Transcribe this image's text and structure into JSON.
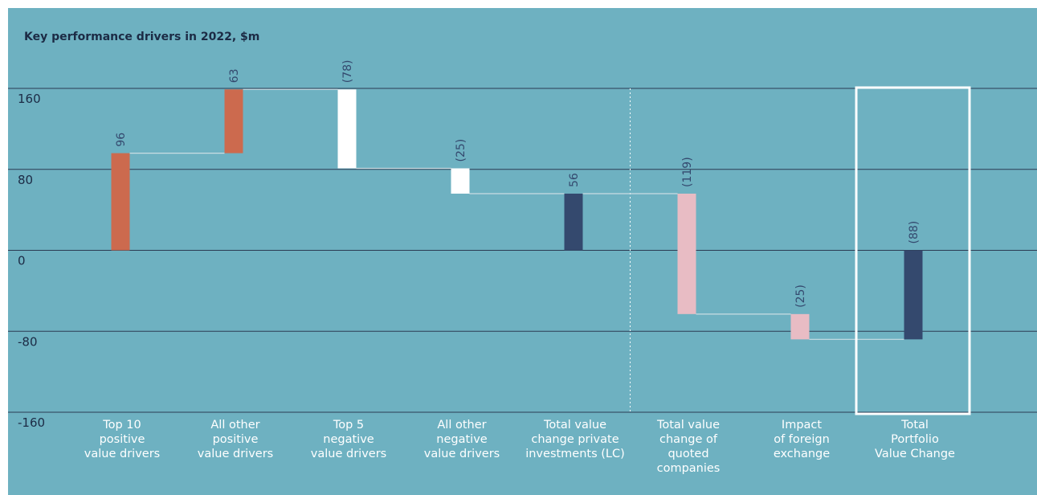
{
  "chart_data": {
    "type": "waterfall",
    "title": "Key performance drivers in 2022, $m",
    "ylim": [
      -160,
      160
    ],
    "yticks": [
      160,
      80,
      0,
      -80,
      -160
    ],
    "categories": [
      [
        "Top 10",
        "positive",
        "value drivers"
      ],
      [
        "All other",
        "positive",
        "value drivers"
      ],
      [
        "Top 5",
        "negative",
        "value drivers"
      ],
      [
        "All other",
        "negative",
        "value drivers"
      ],
      [
        "Total value",
        "change private",
        "investments (LC)"
      ],
      [
        "Total value",
        "change of",
        "quoted",
        "companies"
      ],
      [
        "Impact",
        "of foreign",
        "exchange"
      ],
      [
        "Total",
        "Portfolio",
        "Value Change"
      ]
    ],
    "bars": [
      {
        "start": 0,
        "end": 96,
        "label": "96",
        "kind": "positive"
      },
      {
        "start": 96,
        "end": 159,
        "label": "63",
        "kind": "positive"
      },
      {
        "start": 159,
        "end": 81,
        "label": "(78)",
        "kind": "negative"
      },
      {
        "start": 81,
        "end": 56,
        "label": "(25)",
        "kind": "negative"
      },
      {
        "start": 0,
        "end": 56,
        "label": "56",
        "kind": "total"
      },
      {
        "start": 56,
        "end": -63,
        "label": "(119)",
        "kind": "quoted"
      },
      {
        "start": -63,
        "end": -88,
        "label": "(25)",
        "kind": "quoted"
      },
      {
        "start": 0,
        "end": -88,
        "label": "(88)",
        "kind": "total"
      }
    ],
    "colors": {
      "background": "#6eb1c1",
      "positive": "#cc6a4e",
      "negative": "#ffffff",
      "total": "#34496e",
      "quoted": "#e8bcc4",
      "gridline": "#2b3b52",
      "connector": "#c9dde3",
      "axis_text": "#1c2b45",
      "category_text": "#ffffff",
      "value_text": "#34496e",
      "highlight_box": "#ffffff"
    },
    "divider_after_category": 5,
    "highlight_category": 8
  }
}
